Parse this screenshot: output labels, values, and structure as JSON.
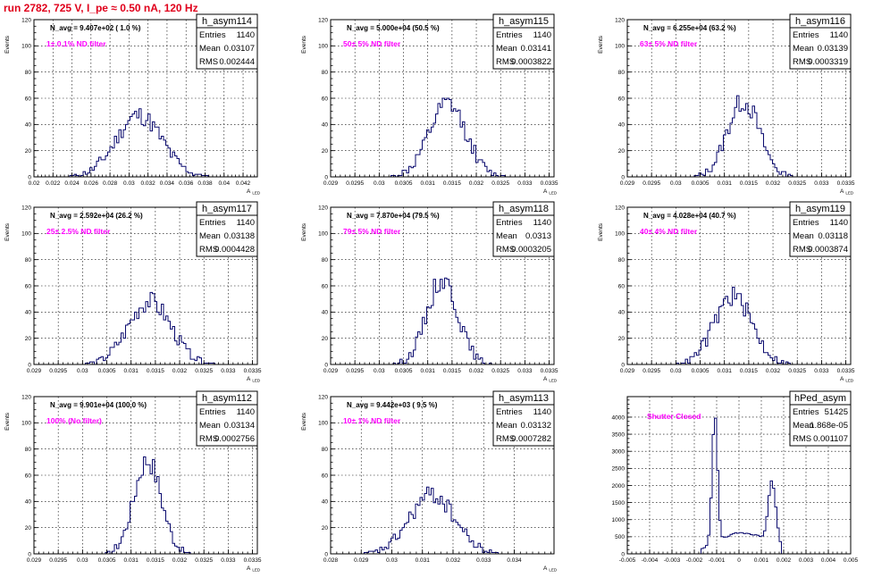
{
  "page_title": "run 2782,   725 V, I_pe ≈ 0.50 nA, 120 Hz",
  "colors": {
    "title": "#e0001b",
    "histogram": "#0a0a6e",
    "filter_label": "#ff00ff"
  },
  "chart_data": [
    {
      "type": "histogram",
      "name": "h_asym114",
      "navg": "N_avg = 9.407e+02 ( 1.0 %)",
      "filter": "1± 0.1% ND filter",
      "stats": {
        "entries": "1140",
        "mean": "0.03107",
        "rms": "0.002444"
      },
      "ylabel": "Events",
      "xlabel": "A_LED",
      "xlim": [
        0.02,
        0.0435
      ],
      "ylim": [
        0,
        120
      ],
      "xticks": [
        0.02,
        0.022,
        0.024,
        0.026,
        0.028,
        0.03,
        0.032,
        0.034,
        0.036,
        0.038,
        0.04,
        0.042
      ],
      "xtick_labels": [
        "0.02",
        "0.022",
        "0.024",
        "0.026",
        "0.028",
        "0.03",
        "0.032",
        "0.034",
        "0.036",
        "0.038",
        "0.04",
        "0.042"
      ],
      "yticks": [
        0,
        20,
        40,
        60,
        80,
        100,
        120
      ],
      "ytick_labels": [
        "0",
        "20",
        "40",
        "60",
        "80",
        "100",
        "120"
      ],
      "peaks": [
        {
          "mean": 0.03107,
          "sigma": 0.0024,
          "amp": 47
        }
      ],
      "nbins": 100,
      "seed": 11
    },
    {
      "type": "histogram",
      "name": "h_asym115",
      "navg": "N_avg = 5.000e+04 (50.5 %)",
      "filter": "50± 5% ND filter",
      "stats": {
        "entries": "1140",
        "mean": "0.03141",
        "rms": "0.0003822"
      },
      "ylabel": "Events",
      "xlabel": "A_LED",
      "xlim": [
        0.029,
        0.0336
      ],
      "ylim": [
        0,
        120
      ],
      "xticks": [
        0.029,
        0.0295,
        0.03,
        0.0305,
        0.031,
        0.0315,
        0.032,
        0.0325,
        0.033,
        0.0335
      ],
      "xtick_labels": [
        "0.029",
        "0.0295",
        "0.03",
        "0.0305",
        "0.031",
        "0.0315",
        "0.032",
        "0.0325",
        "0.033",
        "0.0335"
      ],
      "yticks": [
        0,
        20,
        40,
        60,
        80,
        100,
        120
      ],
      "ytick_labels": [
        "0",
        "20",
        "40",
        "60",
        "80",
        "100",
        "120"
      ],
      "peaks": [
        {
          "mean": 0.03141,
          "sigma": 0.00038,
          "amp": 55
        }
      ],
      "nbins": 100,
      "seed": 12
    },
    {
      "type": "histogram",
      "name": "h_asym116",
      "navg": "N_avg = 6.255e+04 (63.2 %)",
      "filter": "63± 5% ND filter",
      "stats": {
        "entries": "1140",
        "mean": "0.03139",
        "rms": "0.0003319"
      },
      "ylabel": "Events",
      "xlabel": "A_LED",
      "xlim": [
        0.029,
        0.0336
      ],
      "ylim": [
        0,
        120
      ],
      "xticks": [
        0.029,
        0.0295,
        0.03,
        0.0305,
        0.031,
        0.0315,
        0.032,
        0.0325,
        0.033,
        0.0335
      ],
      "xtick_labels": [
        "0.029",
        "0.0295",
        "0.03",
        "0.0305",
        "0.031",
        "0.0315",
        "0.032",
        "0.0325",
        "0.033",
        "0.0335"
      ],
      "yticks": [
        0,
        20,
        40,
        60,
        80,
        100,
        120
      ],
      "ytick_labels": [
        "0",
        "20",
        "40",
        "60",
        "80",
        "100",
        "120"
      ],
      "peaks": [
        {
          "mean": 0.03139,
          "sigma": 0.00033,
          "amp": 58
        }
      ],
      "nbins": 100,
      "seed": 13
    },
    {
      "type": "histogram",
      "name": "h_asym117",
      "navg": "N_avg = 2.592e+04 (26.2 %)",
      "filter": "25± 2.5% ND filter",
      "stats": {
        "entries": "1140",
        "mean": "0.03138",
        "rms": "0.0004428"
      },
      "ylabel": "Events",
      "xlabel": "A_LED",
      "xlim": [
        0.029,
        0.0336
      ],
      "ylim": [
        0,
        120
      ],
      "xticks": [
        0.029,
        0.0295,
        0.03,
        0.0305,
        0.031,
        0.0315,
        0.032,
        0.0325,
        0.033,
        0.0335
      ],
      "xtick_labels": [
        "0.029",
        "0.0295",
        "0.03",
        "0.0305",
        "0.031",
        "0.0315",
        "0.032",
        "0.0325",
        "0.033",
        "0.0335"
      ],
      "yticks": [
        0,
        20,
        40,
        60,
        80,
        100,
        120
      ],
      "ytick_labels": [
        "0",
        "20",
        "40",
        "60",
        "80",
        "100",
        "120"
      ],
      "peaks": [
        {
          "mean": 0.03138,
          "sigma": 0.00044,
          "amp": 48
        }
      ],
      "nbins": 100,
      "seed": 14
    },
    {
      "type": "histogram",
      "name": "h_asym118",
      "navg": "N_avg = 7.870e+04 (79.5 %)",
      "filter": "79± 5% ND filter",
      "stats": {
        "entries": "1140",
        "mean": "0.0313",
        "rms": "0.0003205"
      },
      "ylabel": "Events",
      "xlabel": "A_LED",
      "xlim": [
        0.029,
        0.0336
      ],
      "ylim": [
        0,
        120
      ],
      "xticks": [
        0.029,
        0.0295,
        0.03,
        0.0305,
        0.031,
        0.0315,
        0.032,
        0.0325,
        0.033,
        0.0335
      ],
      "xtick_labels": [
        "0.029",
        "0.0295",
        "0.03",
        "0.0305",
        "0.031",
        "0.0315",
        "0.032",
        "0.0325",
        "0.033",
        "0.0335"
      ],
      "yticks": [
        0,
        20,
        40,
        60,
        80,
        100,
        120
      ],
      "ytick_labels": [
        "0",
        "20",
        "40",
        "60",
        "80",
        "100",
        "120"
      ],
      "peaks": [
        {
          "mean": 0.0313,
          "sigma": 0.00032,
          "amp": 65
        }
      ],
      "nbins": 100,
      "seed": 15
    },
    {
      "type": "histogram",
      "name": "h_asym119",
      "navg": "N_avg = 4.028e+04 (40.7 %)",
      "filter": "40± 4% ND filter",
      "stats": {
        "entries": "1140",
        "mean": "0.03118",
        "rms": "0.0003874"
      },
      "ylabel": "Events",
      "xlabel": "A_LED",
      "xlim": [
        0.029,
        0.0336
      ],
      "ylim": [
        0,
        120
      ],
      "xticks": [
        0.029,
        0.0295,
        0.03,
        0.0305,
        0.031,
        0.0315,
        0.032,
        0.0325,
        0.033,
        0.0335
      ],
      "xtick_labels": [
        "0.029",
        "0.0295",
        "0.03",
        "0.0305",
        "0.031",
        "0.0315",
        "0.032",
        "0.0325",
        "0.033",
        "0.0335"
      ],
      "yticks": [
        0,
        20,
        40,
        60,
        80,
        100,
        120
      ],
      "ytick_labels": [
        "0",
        "20",
        "40",
        "60",
        "80",
        "100",
        "120"
      ],
      "peaks": [
        {
          "mean": 0.03118,
          "sigma": 0.00039,
          "amp": 52
        }
      ],
      "nbins": 100,
      "seed": 16
    },
    {
      "type": "histogram",
      "name": "h_asym112",
      "navg": "N_avg = 9.901e+04 (100.0 %)",
      "filter": "100% (No filter)",
      "stats": {
        "entries": "1140",
        "mean": "0.03134",
        "rms": "0.0002756"
      },
      "ylabel": "Events",
      "xlabel": "A_LED",
      "xlim": [
        0.029,
        0.0336
      ],
      "ylim": [
        0,
        120
      ],
      "xticks": [
        0.029,
        0.0295,
        0.03,
        0.0305,
        0.031,
        0.0315,
        0.032,
        0.0325,
        0.033,
        0.0335
      ],
      "xtick_labels": [
        "0.029",
        "0.0295",
        "0.03",
        "0.0305",
        "0.031",
        "0.0315",
        "0.032",
        "0.0325",
        "0.033",
        "0.0335"
      ],
      "yticks": [
        0,
        20,
        40,
        60,
        80,
        100,
        120
      ],
      "ytick_labels": [
        "0",
        "20",
        "40",
        "60",
        "80",
        "100",
        "120"
      ],
      "peaks": [
        {
          "mean": 0.03134,
          "sigma": 0.00028,
          "amp": 72
        }
      ],
      "nbins": 100,
      "seed": 17
    },
    {
      "type": "histogram",
      "name": "h_asym113",
      "navg": "N_avg = 9.442e+03 ( 9.5 %)",
      "filter": "10± 1% ND filter",
      "stats": {
        "entries": "1140",
        "mean": "0.03132",
        "rms": "0.0007282"
      },
      "ylabel": "Events",
      "xlabel": "A_LED",
      "xlim": [
        0.028,
        0.0353
      ],
      "ylim": [
        0,
        120
      ],
      "xticks": [
        0.028,
        0.029,
        0.03,
        0.031,
        0.032,
        0.033,
        0.034
      ],
      "xtick_labels": [
        "0.028",
        "0.029",
        "0.03",
        "0.031",
        "0.032",
        "0.033",
        "0.034"
      ],
      "yticks": [
        0,
        20,
        40,
        60,
        80,
        100,
        120
      ],
      "ytick_labels": [
        "0",
        "20",
        "40",
        "60",
        "80",
        "100",
        "120"
      ],
      "peaks": [
        {
          "mean": 0.03132,
          "sigma": 0.00073,
          "amp": 45
        }
      ],
      "nbins": 100,
      "seed": 18
    },
    {
      "type": "histogram",
      "name": "hPed_asym",
      "navg": "",
      "filter": "Shutter Closed",
      "stats": {
        "entries": "51425",
        "mean": "1.868e-05",
        "rms": "0.001107"
      },
      "ylabel": "",
      "xlabel": "",
      "xlim": [
        -0.005,
        0.005
      ],
      "ylim": [
        0,
        4600
      ],
      "xticks": [
        -0.005,
        -0.004,
        -0.003,
        -0.002,
        -0.001,
        0,
        0.001,
        0.002,
        0.003,
        0.004,
        0.005
      ],
      "xtick_labels": [
        "-0.005",
        "-0.004",
        "-0.003",
        "-0.002",
        "-0.001",
        "0",
        "0.001",
        "0.002",
        "0.003",
        "0.004",
        "0.005"
      ],
      "yticks": [
        0,
        500,
        1000,
        1500,
        2000,
        2500,
        3000,
        3500,
        4000
      ],
      "ytick_labels": [
        "0",
        "500",
        "1000",
        "1500",
        "2000",
        "2500",
        "3000",
        "3500",
        "4000"
      ],
      "peaks": [
        {
          "mean": -0.00108,
          "sigma": 0.00012,
          "amp": 3800
        },
        {
          "mean": 0.00148,
          "sigma": 0.00017,
          "amp": 1800
        },
        {
          "mean": 0.0002,
          "sigma": 0.0011,
          "amp": 620
        }
      ],
      "clip": [
        -0.00165,
        0.0019
      ],
      "nbins": 100,
      "seed": 19
    }
  ]
}
